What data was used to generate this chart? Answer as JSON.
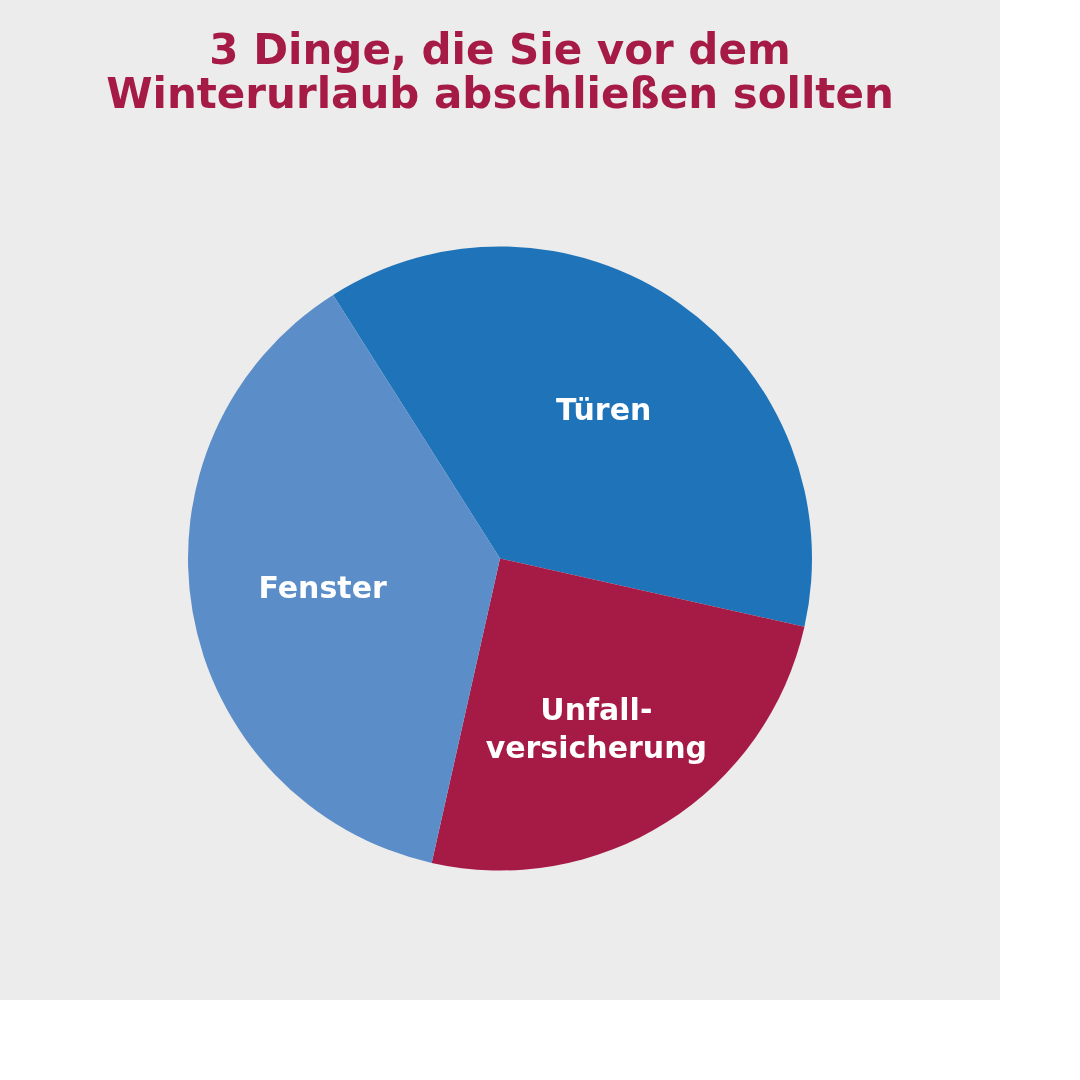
{
  "chart_data": {
    "type": "pie",
    "title": [
      "3 Dinge, die Sie vor dem",
      "Winterurlaub abschließen sollten"
    ],
    "categories": [
      "Türen",
      "Unfall-\nversicherung",
      "Fenster"
    ],
    "values": [
      37.5,
      25,
      37.5
    ],
    "colors": [
      "#1f74b9",
      "#a61b45",
      "#5b8dc8"
    ],
    "legend": false
  }
}
